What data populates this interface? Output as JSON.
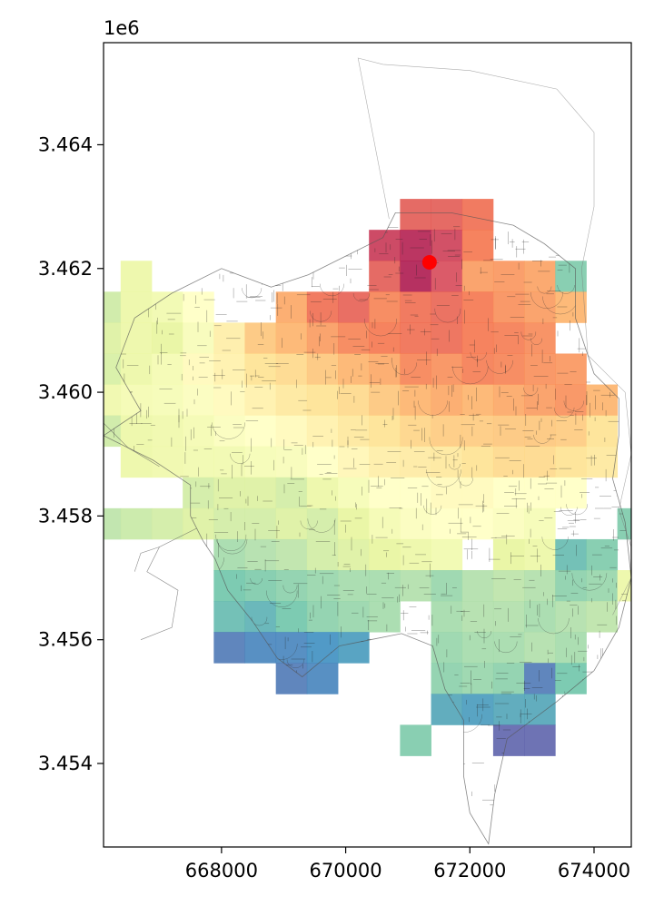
{
  "chart_data": {
    "type": "heatmap",
    "title": "",
    "xlabel": "",
    "ylabel": "",
    "xlim": [
      666100,
      674600
    ],
    "ylim": [
      3452650,
      3465650
    ],
    "offset_label": "1e6",
    "x_ticks": [
      668000,
      670000,
      672000,
      674000
    ],
    "x_tick_labels": [
      "668000",
      "670000",
      "672000",
      "674000"
    ],
    "y_ticks": [
      3454000,
      3456000,
      3458000,
      3460000,
      3462000,
      3464000
    ],
    "y_tick_labels": [
      "3.454",
      "3.456",
      "3.458",
      "3.460",
      "3.462",
      "3.464"
    ],
    "grid": false,
    "cell_size": 500,
    "colormap": [
      "#5e4fa2",
      "#3288bd",
      "#66c2a5",
      "#abdda4",
      "#e6f598",
      "#ffffbf",
      "#fee08b",
      "#fdae61",
      "#f46d43",
      "#d53e4f",
      "#9e0142"
    ],
    "cell_alpha": 0.85,
    "cells": [
      [
        671125,
        3462875,
        0.86
      ],
      [
        671625,
        3462875,
        0.86
      ],
      [
        672125,
        3462875,
        0.82
      ],
      [
        670625,
        3462375,
        0.93
      ],
      [
        671125,
        3462375,
        0.97
      ],
      [
        671625,
        3462375,
        0.92
      ],
      [
        672125,
        3462375,
        0.8
      ],
      [
        666625,
        3461875,
        0.42
      ],
      [
        670625,
        3461875,
        0.86
      ],
      [
        671125,
        3461875,
        0.98
      ],
      [
        671625,
        3461875,
        0.9
      ],
      [
        672125,
        3461875,
        0.74
      ],
      [
        672625,
        3461875,
        0.75
      ],
      [
        673125,
        3461875,
        0.73
      ],
      [
        673625,
        3461875,
        0.22
      ],
      [
        666125,
        3461375,
        0.35
      ],
      [
        666625,
        3461375,
        0.42
      ],
      [
        667125,
        3461375,
        0.44
      ],
      [
        667625,
        3461375,
        0.5
      ],
      [
        669125,
        3461375,
        0.72
      ],
      [
        669625,
        3461375,
        0.82
      ],
      [
        670125,
        3461375,
        0.85
      ],
      [
        670625,
        3461375,
        0.78
      ],
      [
        671125,
        3461375,
        0.82
      ],
      [
        671625,
        3461375,
        0.84
      ],
      [
        672125,
        3461375,
        0.8
      ],
      [
        672625,
        3461375,
        0.76
      ],
      [
        673125,
        3461375,
        0.74
      ],
      [
        673625,
        3461375,
        0.7
      ],
      [
        666125,
        3460875,
        0.38
      ],
      [
        666625,
        3460875,
        0.42
      ],
      [
        667125,
        3460875,
        0.4
      ],
      [
        667625,
        3460875,
        0.47
      ],
      [
        668125,
        3460875,
        0.56
      ],
      [
        668625,
        3460875,
        0.66
      ],
      [
        669125,
        3460875,
        0.7
      ],
      [
        669625,
        3460875,
        0.74
      ],
      [
        670125,
        3460875,
        0.78
      ],
      [
        670625,
        3460875,
        0.8
      ],
      [
        671125,
        3460875,
        0.82
      ],
      [
        671625,
        3460875,
        0.83
      ],
      [
        672125,
        3460875,
        0.8
      ],
      [
        672625,
        3460875,
        0.79
      ],
      [
        673125,
        3460875,
        0.77
      ],
      [
        666125,
        3460375,
        0.37
      ],
      [
        666625,
        3460375,
        0.42
      ],
      [
        667125,
        3460375,
        0.45
      ],
      [
        667625,
        3460375,
        0.52
      ],
      [
        668125,
        3460375,
        0.55
      ],
      [
        668625,
        3460375,
        0.6
      ],
      [
        669125,
        3460375,
        0.62
      ],
      [
        669625,
        3460375,
        0.66
      ],
      [
        670125,
        3460375,
        0.7
      ],
      [
        670625,
        3460375,
        0.72
      ],
      [
        671125,
        3460375,
        0.78
      ],
      [
        671625,
        3460375,
        0.76
      ],
      [
        672125,
        3460375,
        0.79
      ],
      [
        672625,
        3460375,
        0.78
      ],
      [
        673125,
        3460375,
        0.76
      ],
      [
        673625,
        3460375,
        0.75
      ],
      [
        666125,
        3459875,
        0.43
      ],
      [
        666625,
        3459875,
        0.45
      ],
      [
        667125,
        3459875,
        0.46
      ],
      [
        667625,
        3459875,
        0.48
      ],
      [
        668125,
        3459875,
        0.52
      ],
      [
        668625,
        3459875,
        0.55
      ],
      [
        669125,
        3459875,
        0.58
      ],
      [
        669625,
        3459875,
        0.6
      ],
      [
        670125,
        3459875,
        0.62
      ],
      [
        670625,
        3459875,
        0.66
      ],
      [
        671125,
        3459875,
        0.7
      ],
      [
        671625,
        3459875,
        0.72
      ],
      [
        672125,
        3459875,
        0.7
      ],
      [
        672625,
        3459875,
        0.72
      ],
      [
        673125,
        3459875,
        0.74
      ],
      [
        673625,
        3459875,
        0.76
      ],
      [
        674125,
        3459875,
        0.7
      ],
      [
        666125,
        3459375,
        0.35
      ],
      [
        666625,
        3459375,
        0.42
      ],
      [
        667125,
        3459375,
        0.43
      ],
      [
        667625,
        3459375,
        0.45
      ],
      [
        668125,
        3459375,
        0.48
      ],
      [
        668625,
        3459375,
        0.5
      ],
      [
        669125,
        3459375,
        0.52
      ],
      [
        669625,
        3459375,
        0.55
      ],
      [
        670125,
        3459375,
        0.58
      ],
      [
        670625,
        3459375,
        0.6
      ],
      [
        671125,
        3459375,
        0.63
      ],
      [
        671625,
        3459375,
        0.65
      ],
      [
        672125,
        3459375,
        0.65
      ],
      [
        672625,
        3459375,
        0.66
      ],
      [
        673125,
        3459375,
        0.66
      ],
      [
        673625,
        3459375,
        0.65
      ],
      [
        674125,
        3459375,
        0.6
      ],
      [
        666625,
        3458875,
        0.42
      ],
      [
        667125,
        3458875,
        0.43
      ],
      [
        667625,
        3458875,
        0.44
      ],
      [
        668125,
        3458875,
        0.44
      ],
      [
        668625,
        3458875,
        0.46
      ],
      [
        669125,
        3458875,
        0.47
      ],
      [
        669625,
        3458875,
        0.5
      ],
      [
        670125,
        3458875,
        0.53
      ],
      [
        670625,
        3458875,
        0.56
      ],
      [
        671125,
        3458875,
        0.57
      ],
      [
        671625,
        3458875,
        0.58
      ],
      [
        672125,
        3458875,
        0.6
      ],
      [
        672625,
        3458875,
        0.62
      ],
      [
        673125,
        3458875,
        0.62
      ],
      [
        673625,
        3458875,
        0.6
      ],
      [
        674125,
        3458875,
        0.58
      ],
      [
        667625,
        3458375,
        0.36
      ],
      [
        668125,
        3458375,
        0.38
      ],
      [
        668625,
        3458375,
        0.38
      ],
      [
        669125,
        3458375,
        0.36
      ],
      [
        669625,
        3458375,
        0.42
      ],
      [
        670125,
        3458375,
        0.46
      ],
      [
        670625,
        3458375,
        0.5
      ],
      [
        671125,
        3458375,
        0.5
      ],
      [
        671625,
        3458375,
        0.52
      ],
      [
        672125,
        3458375,
        0.52
      ],
      [
        672625,
        3458375,
        0.5
      ],
      [
        673125,
        3458375,
        0.5
      ],
      [
        673625,
        3458375,
        0.5
      ],
      [
        666125,
        3457875,
        0.32
      ],
      [
        666625,
        3457875,
        0.34
      ],
      [
        667125,
        3457875,
        0.36
      ],
      [
        667625,
        3457875,
        0.38
      ],
      [
        668125,
        3457875,
        0.36
      ],
      [
        668625,
        3457875,
        0.36
      ],
      [
        669125,
        3457875,
        0.38
      ],
      [
        669625,
        3457875,
        0.36
      ],
      [
        670125,
        3457875,
        0.4
      ],
      [
        670625,
        3457875,
        0.45
      ],
      [
        671125,
        3457875,
        0.48
      ],
      [
        671625,
        3457875,
        0.5
      ],
      [
        672125,
        3457875,
        0.5
      ],
      [
        672625,
        3457875,
        0.48
      ],
      [
        673125,
        3457875,
        0.46
      ],
      [
        674625,
        3457875,
        0.22
      ],
      [
        668125,
        3457375,
        0.28
      ],
      [
        668625,
        3457375,
        0.3
      ],
      [
        669125,
        3457375,
        0.32
      ],
      [
        669625,
        3457375,
        0.36
      ],
      [
        670125,
        3457375,
        0.38
      ],
      [
        670625,
        3457375,
        0.4
      ],
      [
        671125,
        3457375,
        0.42
      ],
      [
        671625,
        3457375,
        0.44
      ],
      [
        672625,
        3457375,
        0.4
      ],
      [
        673125,
        3457375,
        0.42
      ],
      [
        673625,
        3457375,
        0.18
      ],
      [
        674125,
        3457375,
        0.22
      ],
      [
        668125,
        3456875,
        0.2
      ],
      [
        668625,
        3456875,
        0.22
      ],
      [
        669125,
        3456875,
        0.24
      ],
      [
        669625,
        3456875,
        0.26
      ],
      [
        670125,
        3456875,
        0.28
      ],
      [
        670625,
        3456875,
        0.28
      ],
      [
        671125,
        3456875,
        0.3
      ],
      [
        671625,
        3456875,
        0.26
      ],
      [
        672125,
        3456875,
        0.3
      ],
      [
        672625,
        3456875,
        0.32
      ],
      [
        673125,
        3456875,
        0.3
      ],
      [
        673625,
        3456875,
        0.24
      ],
      [
        674125,
        3456875,
        0.26
      ],
      [
        674625,
        3456875,
        0.42
      ],
      [
        668125,
        3456375,
        0.18
      ],
      [
        668625,
        3456375,
        0.16
      ],
      [
        669125,
        3456375,
        0.2
      ],
      [
        669625,
        3456375,
        0.24
      ],
      [
        670125,
        3456375,
        0.26
      ],
      [
        670625,
        3456375,
        0.28
      ],
      [
        671625,
        3456375,
        0.28
      ],
      [
        672125,
        3456375,
        0.3
      ],
      [
        672625,
        3456375,
        0.3
      ],
      [
        673125,
        3456375,
        0.28
      ],
      [
        673625,
        3456375,
        0.3
      ],
      [
        674125,
        3456375,
        0.32
      ],
      [
        668125,
        3455875,
        0.06
      ],
      [
        668625,
        3455875,
        0.08
      ],
      [
        669125,
        3455875,
        0.08
      ],
      [
        669625,
        3455875,
        0.1
      ],
      [
        670125,
        3455875,
        0.12
      ],
      [
        671625,
        3455875,
        0.26
      ],
      [
        672125,
        3455875,
        0.28
      ],
      [
        672625,
        3455875,
        0.28
      ],
      [
        673125,
        3455875,
        0.3
      ],
      [
        673625,
        3455875,
        0.28
      ],
      [
        669125,
        3455375,
        0.06
      ],
      [
        669625,
        3455375,
        0.08
      ],
      [
        671625,
        3455375,
        0.24
      ],
      [
        672125,
        3455375,
        0.26
      ],
      [
        672625,
        3455375,
        0.24
      ],
      [
        673125,
        3455375,
        0.06
      ],
      [
        673625,
        3455375,
        0.2
      ],
      [
        671625,
        3454875,
        0.14
      ],
      [
        672125,
        3454875,
        0.12
      ],
      [
        672625,
        3454875,
        0.14
      ],
      [
        673125,
        3454875,
        0.14
      ],
      [
        671125,
        3454375,
        0.22
      ],
      [
        672625,
        3454375,
        0.02
      ],
      [
        673125,
        3454375,
        0.02
      ]
    ],
    "marker": {
      "x": 671350,
      "y": 3462100,
      "color": "#ff0000"
    },
    "boundary": [
      [
        668800,
        3461700
      ],
      [
        668000,
        3462000
      ],
      [
        667200,
        3461600
      ],
      [
        666600,
        3461200
      ],
      [
        666300,
        3460400
      ],
      [
        666700,
        3459700
      ],
      [
        666100,
        3459300
      ],
      [
        666900,
        3458900
      ],
      [
        667500,
        3458500
      ],
      [
        667500,
        3458000
      ],
      [
        667700,
        3457600
      ],
      [
        667900,
        3457300
      ],
      [
        668100,
        3456800
      ],
      [
        668500,
        3456300
      ],
      [
        668900,
        3455700
      ],
      [
        669300,
        3455400
      ],
      [
        669900,
        3455900
      ],
      [
        670400,
        3456000
      ],
      [
        670900,
        3456100
      ],
      [
        671400,
        3455900
      ],
      [
        671600,
        3455200
      ],
      [
        671900,
        3454700
      ],
      [
        671900,
        3453800
      ],
      [
        672000,
        3453200
      ],
      [
        672300,
        3452700
      ],
      [
        672400,
        3453500
      ],
      [
        672600,
        3454400
      ],
      [
        673400,
        3455000
      ],
      [
        674000,
        3455500
      ],
      [
        674400,
        3456200
      ],
      [
        674600,
        3457000
      ],
      [
        674500,
        3457900
      ],
      [
        674300,
        3458600
      ],
      [
        674400,
        3459300
      ],
      [
        674400,
        3459900
      ],
      [
        674000,
        3460300
      ],
      [
        673700,
        3461200
      ],
      [
        673700,
        3462000
      ],
      [
        673200,
        3462400
      ],
      [
        672700,
        3462700
      ],
      [
        671700,
        3462900
      ],
      [
        670800,
        3462900
      ],
      [
        670600,
        3462500
      ],
      [
        670000,
        3462200
      ],
      [
        669400,
        3461900
      ]
    ],
    "outer_boundary": [
      [
        670700,
        3462800
      ],
      [
        670200,
        3465400
      ],
      [
        670600,
        3465300
      ],
      [
        672000,
        3465200
      ],
      [
        673400,
        3464900
      ],
      [
        674000,
        3464200
      ],
      [
        674000,
        3463000
      ],
      [
        673800,
        3462000
      ],
      [
        673900,
        3460600
      ],
      [
        674500,
        3460000
      ],
      [
        674600,
        3459000
      ],
      [
        674400,
        3458100
      ],
      [
        674700,
        3457200
      ],
      [
        674300,
        3456400
      ]
    ],
    "west_roads": [
      [
        [
          667600,
          3457800
        ],
        [
          667000,
          3457500
        ],
        [
          666800,
          3457100
        ],
        [
          667300,
          3456800
        ],
        [
          667200,
          3456200
        ],
        [
          666700,
          3456000
        ]
      ],
      [
        [
          667000,
          3457500
        ],
        [
          666700,
          3457400
        ],
        [
          666600,
          3457100
        ]
      ],
      [
        [
          666100,
          3459500
        ],
        [
          666500,
          3459100
        ],
        [
          667000,
          3458800
        ]
      ]
    ]
  }
}
